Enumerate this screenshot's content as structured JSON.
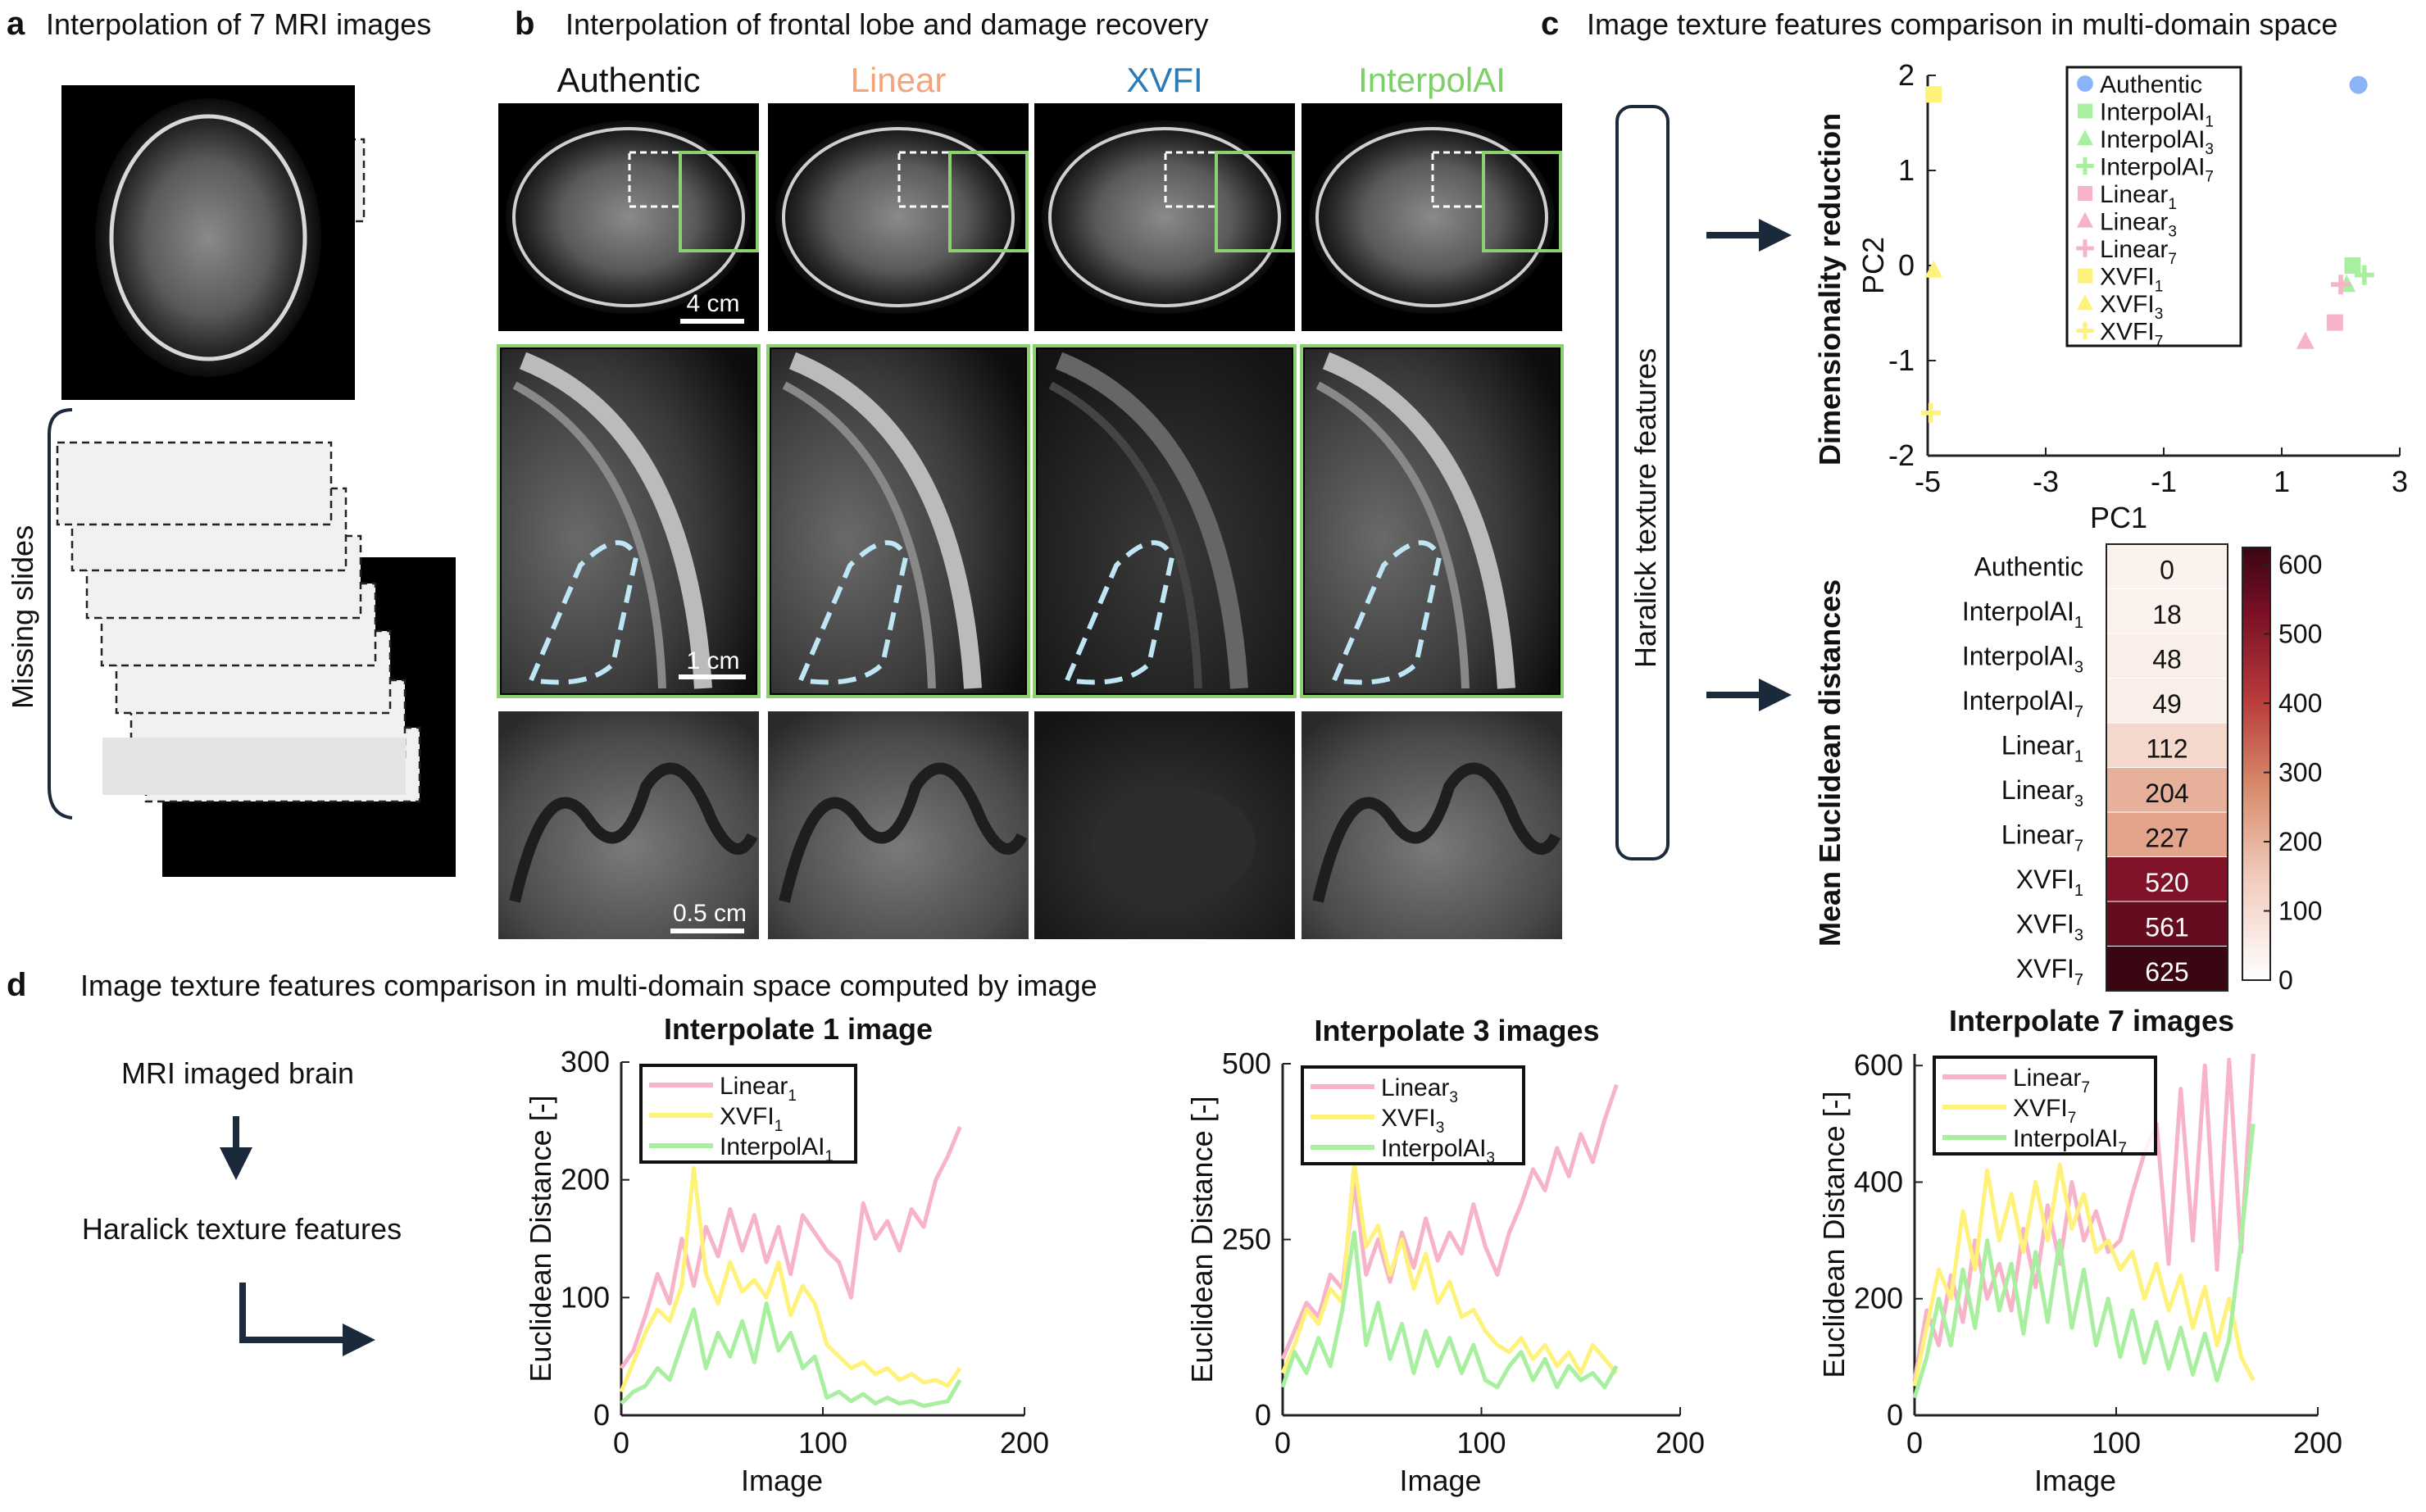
{
  "panel_a": {
    "letter": "a",
    "title": "Interpolation of 7 MRI images",
    "bracket_label": "Missing slides"
  },
  "panel_b": {
    "letter": "b",
    "title": "Interpolation of frontal lobe and damage recovery",
    "columns": [
      {
        "label": "Authentic",
        "color": "#111111"
      },
      {
        "label": "Linear",
        "color": "#f4a47a"
      },
      {
        "label": "XVFI",
        "color": "#2a7ab8"
      },
      {
        "label": "InterpolAI",
        "color": "#7cd067"
      }
    ],
    "scale_bars": [
      "4 cm",
      "1 cm",
      "0.5 cm"
    ]
  },
  "panel_c": {
    "letter": "c",
    "title": "Image texture features comparison in multi-domain space",
    "box_label": "Haralick texture features",
    "pca_ylabel": "Dimensionality reduction",
    "heat_ylabel": "Mean Euclidean distances"
  },
  "panel_d": {
    "letter": "d",
    "title": "Image texture features comparison in multi-domain space computed by image",
    "flow": [
      "MRI imaged brain",
      "Haralick texture features"
    ]
  },
  "colors": {
    "authentic": "#8ab4f8",
    "interpolai": "#a8f0a0",
    "linear": "#f7b3c8",
    "xvfi": "#fff27a",
    "dark_navy": "#1a2a3a",
    "green_box": "#8cd070"
  },
  "chart_data": [
    {
      "id": "pca",
      "type": "scatter",
      "xlabel": "PC1",
      "ylabel": "PC2",
      "xlim": [
        -5,
        3
      ],
      "ylim": [
        -2,
        2
      ],
      "xticks": [
        "-5",
        "-3",
        "-1",
        "1",
        "3"
      ],
      "yticks": [
        "2",
        "1",
        "0",
        "-1",
        "-2"
      ],
      "legend_position": "top-right",
      "series": [
        {
          "name": "Authentic",
          "sub": "",
          "marker": "circle",
          "color": "#8ab4f8",
          "x": 2.3,
          "y": 1.9
        },
        {
          "name": "InterpolAI",
          "sub": "1",
          "marker": "square",
          "color": "#a8f0a0",
          "x": 2.2,
          "y": 0.0
        },
        {
          "name": "InterpolAI",
          "sub": "3",
          "marker": "triangle",
          "color": "#a8f0a0",
          "x": 2.1,
          "y": -0.2
        },
        {
          "name": "InterpolAI",
          "sub": "7",
          "marker": "plus",
          "color": "#a8f0a0",
          "x": 2.4,
          "y": -0.1
        },
        {
          "name": "Linear",
          "sub": "1",
          "marker": "square",
          "color": "#f7b3c8",
          "x": 1.9,
          "y": -0.6
        },
        {
          "name": "Linear",
          "sub": "3",
          "marker": "triangle",
          "color": "#f7b3c8",
          "x": 1.4,
          "y": -0.8
        },
        {
          "name": "Linear",
          "sub": "7",
          "marker": "plus",
          "color": "#f7b3c8",
          "x": 2.0,
          "y": -0.2
        },
        {
          "name": "XVFI",
          "sub": "1",
          "marker": "square",
          "color": "#fff27a",
          "x": -4.9,
          "y": 1.8
        },
        {
          "name": "XVFI",
          "sub": "3",
          "marker": "triangle",
          "color": "#fff27a",
          "x": -4.9,
          "y": -0.05
        },
        {
          "name": "XVFI",
          "sub": "7",
          "marker": "plus",
          "color": "#fff27a",
          "x": -4.95,
          "y": -1.55
        }
      ]
    },
    {
      "id": "heatmap",
      "type": "heatmap",
      "rows": [
        {
          "name": "Authentic",
          "sub": "",
          "value": 0
        },
        {
          "name": "InterpolAI",
          "sub": "1",
          "value": 18
        },
        {
          "name": "InterpolAI",
          "sub": "3",
          "value": 48
        },
        {
          "name": "InterpolAI",
          "sub": "7",
          "value": 49
        },
        {
          "name": "Linear",
          "sub": "1",
          "value": 112
        },
        {
          "name": "Linear",
          "sub": "3",
          "value": 204
        },
        {
          "name": "Linear",
          "sub": "7",
          "value": 227
        },
        {
          "name": "XVFI",
          "sub": "1",
          "value": 520
        },
        {
          "name": "XVFI",
          "sub": "3",
          "value": 561
        },
        {
          "name": "XVFI",
          "sub": "7",
          "value": 625
        }
      ],
      "colorbar_ticks": [
        "600",
        "500",
        "400",
        "300",
        "200",
        "100",
        "0"
      ],
      "colorbar_range": [
        0,
        625
      ]
    },
    {
      "id": "line1",
      "type": "line",
      "title": "Interpolate 1 image",
      "xlabel": "Image",
      "ylabel": "Euclidean Distance [-]",
      "xlim": [
        0,
        200
      ],
      "ylim": [
        0,
        300
      ],
      "xticks": [
        "0",
        "100",
        "200"
      ],
      "yticks": [
        "300",
        "200",
        "100",
        "0"
      ],
      "legend_position": "top-left",
      "series": [
        {
          "name": "Linear",
          "sub": "1",
          "color": "#f7b3c8",
          "x": [
            0,
            6,
            12,
            18,
            24,
            30,
            36,
            42,
            48,
            54,
            60,
            66,
            72,
            78,
            84,
            90,
            96,
            102,
            108,
            114,
            120,
            126,
            132,
            138,
            144,
            150,
            156,
            162,
            168
          ],
          "values": [
            40,
            55,
            85,
            120,
            95,
            150,
            110,
            160,
            135,
            175,
            140,
            170,
            130,
            160,
            120,
            170,
            155,
            140,
            130,
            100,
            180,
            150,
            165,
            140,
            175,
            160,
            200,
            220,
            245
          ]
        },
        {
          "name": "XVFI",
          "sub": "1",
          "color": "#fff27a",
          "x": [
            0,
            6,
            12,
            18,
            24,
            30,
            36,
            42,
            48,
            54,
            60,
            66,
            72,
            78,
            84,
            90,
            96,
            102,
            108,
            114,
            120,
            126,
            132,
            138,
            144,
            150,
            156,
            162,
            168
          ],
          "values": [
            20,
            45,
            70,
            90,
            80,
            110,
            210,
            120,
            95,
            130,
            105,
            115,
            100,
            130,
            85,
            110,
            95,
            60,
            50,
            40,
            45,
            35,
            40,
            30,
            35,
            28,
            30,
            25,
            40
          ]
        },
        {
          "name": "InterpolAI",
          "sub": "1",
          "color": "#a8f0a0",
          "x": [
            0,
            6,
            12,
            18,
            24,
            30,
            36,
            42,
            48,
            54,
            60,
            66,
            72,
            78,
            84,
            90,
            96,
            102,
            108,
            114,
            120,
            126,
            132,
            138,
            144,
            150,
            156,
            162,
            168
          ],
          "values": [
            10,
            20,
            25,
            40,
            30,
            60,
            90,
            40,
            70,
            50,
            80,
            45,
            95,
            55,
            70,
            40,
            50,
            15,
            20,
            12,
            18,
            10,
            15,
            10,
            12,
            8,
            10,
            12,
            30
          ]
        }
      ]
    },
    {
      "id": "line3",
      "type": "line",
      "title": "Interpolate 3 images",
      "xlabel": "Image",
      "ylabel": "Euclidean Distance [-]",
      "xlim": [
        0,
        200
      ],
      "ylim": [
        0,
        500
      ],
      "xticks": [
        "0",
        "100",
        "200"
      ],
      "yticks": [
        "500",
        "250",
        "0"
      ],
      "legend_position": "top-left",
      "series": [
        {
          "name": "Linear",
          "sub": "3",
          "color": "#f7b3c8",
          "x": [
            0,
            6,
            12,
            18,
            24,
            30,
            36,
            42,
            48,
            54,
            60,
            66,
            72,
            78,
            84,
            90,
            96,
            102,
            108,
            114,
            120,
            126,
            132,
            138,
            144,
            150,
            156,
            162,
            168
          ],
          "values": [
            80,
            120,
            160,
            140,
            200,
            180,
            330,
            200,
            250,
            190,
            260,
            210,
            280,
            220,
            260,
            230,
            300,
            240,
            200,
            260,
            300,
            350,
            320,
            380,
            340,
            400,
            360,
            420,
            470
          ]
        },
        {
          "name": "XVFI",
          "sub": "3",
          "color": "#fff27a",
          "x": [
            0,
            6,
            12,
            18,
            24,
            30,
            36,
            42,
            48,
            54,
            60,
            66,
            72,
            78,
            84,
            90,
            96,
            102,
            108,
            114,
            120,
            126,
            132,
            138,
            144,
            150,
            156,
            162,
            168
          ],
          "values": [
            60,
            100,
            150,
            130,
            180,
            160,
            360,
            240,
            270,
            200,
            250,
            180,
            230,
            160,
            190,
            140,
            150,
            120,
            100,
            90,
            110,
            80,
            100,
            70,
            90,
            60,
            100,
            80,
            60
          ]
        },
        {
          "name": "InterpolAI",
          "sub": "3",
          "color": "#a8f0a0",
          "x": [
            0,
            6,
            12,
            18,
            24,
            30,
            36,
            42,
            48,
            54,
            60,
            66,
            72,
            78,
            84,
            90,
            96,
            102,
            108,
            114,
            120,
            126,
            132,
            138,
            144,
            150,
            156,
            162,
            168
          ],
          "values": [
            40,
            90,
            60,
            110,
            70,
            150,
            260,
            100,
            160,
            80,
            130,
            60,
            120,
            70,
            110,
            60,
            100,
            50,
            40,
            70,
            90,
            50,
            80,
            40,
            70,
            50,
            60,
            40,
            70
          ]
        }
      ]
    },
    {
      "id": "line7",
      "type": "line",
      "title": "Interpolate 7 images",
      "xlabel": "Image",
      "ylabel": "Euclidean Distance [-]",
      "xlim": [
        0,
        200
      ],
      "ylim": [
        0,
        620
      ],
      "xticks": [
        "0",
        "100",
        "200"
      ],
      "yticks": [
        "600",
        "400",
        "200",
        "0"
      ],
      "legend_position": "top-left",
      "series": [
        {
          "name": "Linear",
          "sub": "7",
          "color": "#f7b3c8",
          "x": [
            0,
            6,
            12,
            18,
            24,
            30,
            36,
            42,
            48,
            54,
            60,
            66,
            72,
            78,
            84,
            90,
            96,
            102,
            108,
            114,
            120,
            126,
            132,
            138,
            144,
            150,
            156,
            162,
            168
          ],
          "values": [
            60,
            180,
            120,
            240,
            160,
            300,
            200,
            260,
            180,
            320,
            220,
            360,
            260,
            400,
            300,
            350,
            280,
            300,
            380,
            450,
            500,
            260,
            560,
            300,
            600,
            250,
            610,
            280,
            620
          ]
        },
        {
          "name": "XVFI",
          "sub": "7",
          "color": "#fff27a",
          "x": [
            0,
            6,
            12,
            18,
            24,
            30,
            36,
            42,
            48,
            54,
            60,
            66,
            72,
            78,
            84,
            90,
            96,
            102,
            108,
            114,
            120,
            126,
            132,
            138,
            144,
            150,
            156,
            162,
            168
          ],
          "values": [
            50,
            150,
            250,
            200,
            350,
            250,
            420,
            300,
            380,
            280,
            400,
            300,
            430,
            320,
            380,
            280,
            300,
            250,
            280,
            200,
            260,
            180,
            240,
            150,
            220,
            120,
            200,
            100,
            60
          ]
        },
        {
          "name": "InterpolAI",
          "sub": "7",
          "color": "#a8f0a0",
          "x": [
            0,
            6,
            12,
            18,
            24,
            30,
            36,
            42,
            48,
            54,
            60,
            66,
            72,
            78,
            84,
            90,
            96,
            102,
            108,
            114,
            120,
            126,
            132,
            138,
            144,
            150,
            156,
            162,
            168
          ],
          "values": [
            30,
            100,
            200,
            120,
            250,
            150,
            300,
            180,
            260,
            140,
            280,
            160,
            300,
            150,
            250,
            120,
            200,
            100,
            180,
            90,
            160,
            80,
            150,
            70,
            140,
            60,
            130,
            300,
            500
          ]
        }
      ]
    }
  ]
}
